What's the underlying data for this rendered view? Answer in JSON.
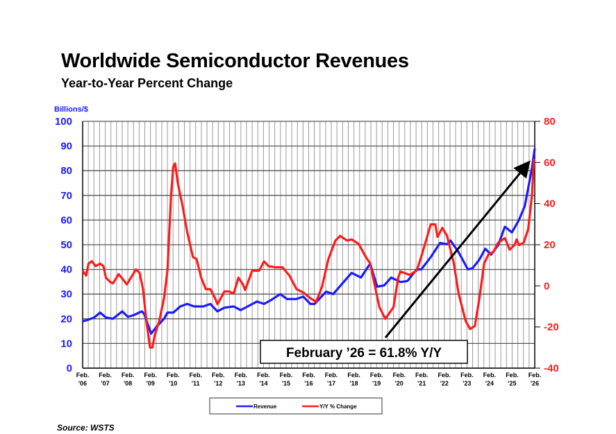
{
  "title": "Worldwide Semiconductor Revenues",
  "subtitle": "Year-to-Year Percent Change",
  "source": "Source: WSTS",
  "chart_data": {
    "type": "line",
    "title": "Worldwide Semiconductor Revenues",
    "subtitle": "Year-to-Year Percent Change",
    "ylabel_left": "Billions/$",
    "ylim_left": [
      0,
      100
    ],
    "yticks_left": [
      "0",
      "10",
      "20",
      "30",
      "40",
      "50",
      "60",
      "70",
      "80",
      "90",
      "100"
    ],
    "ylim_right": [
      -40,
      80
    ],
    "yticks_right": [
      "-40",
      "-20",
      "0",
      "20",
      "40",
      "60",
      "80"
    ],
    "xlim": [
      2006.08,
      2026.08
    ],
    "xticks": [
      [
        "Feb.",
        "'06"
      ],
      [
        "Feb.",
        "'07"
      ],
      [
        "Feb.",
        "'08"
      ],
      [
        "Feb.",
        "'09"
      ],
      [
        "Feb.",
        "'10"
      ],
      [
        "Feb.",
        "'11"
      ],
      [
        "Feb.",
        "'12"
      ],
      [
        "Feb.",
        "'13"
      ],
      [
        "Feb.",
        "'14"
      ],
      [
        "Feb.",
        "'15"
      ],
      [
        "Feb.",
        "'16"
      ],
      [
        "Feb.",
        "'17"
      ],
      [
        "Feb.",
        "'18"
      ],
      [
        "Feb.",
        "'19"
      ],
      [
        "Feb.",
        "'20"
      ],
      [
        "Feb.",
        "'21"
      ],
      [
        "Feb.",
        "'22"
      ],
      [
        "Feb.",
        "'23"
      ],
      [
        "Feb.",
        "'24"
      ],
      [
        "Feb.",
        "'25"
      ],
      [
        "Feb.",
        "'26"
      ]
    ],
    "grid": true,
    "legend_placement": "bottom",
    "annotation": "February ’26 = 61.8% Y/Y",
    "series": [
      {
        "name": "Revenue",
        "axis": "left",
        "color": "#1a1aff",
        "points": [
          [
            2006.08,
            19
          ],
          [
            2006.29,
            19.5
          ],
          [
            2006.59,
            20.5
          ],
          [
            2006.85,
            22.5
          ],
          [
            2007.11,
            20.5
          ],
          [
            2007.42,
            20
          ],
          [
            2007.83,
            23
          ],
          [
            2008.08,
            20.8
          ],
          [
            2008.34,
            21.5
          ],
          [
            2008.7,
            23
          ],
          [
            2008.8,
            22
          ],
          [
            2009.11,
            14
          ],
          [
            2009.37,
            17
          ],
          [
            2009.68,
            20
          ],
          [
            2009.83,
            22.5
          ],
          [
            2010.09,
            22.5
          ],
          [
            2010.4,
            25
          ],
          [
            2010.7,
            26
          ],
          [
            2011.01,
            25
          ],
          [
            2011.42,
            25
          ],
          [
            2011.73,
            26
          ],
          [
            2012.04,
            23
          ],
          [
            2012.35,
            24.5
          ],
          [
            2012.76,
            25
          ],
          [
            2013.07,
            23.5
          ],
          [
            2013.38,
            25
          ],
          [
            2013.79,
            27
          ],
          [
            2014.1,
            26
          ],
          [
            2014.4,
            27.5
          ],
          [
            2014.82,
            30
          ],
          [
            2015.12,
            28
          ],
          [
            2015.54,
            28
          ],
          [
            2015.84,
            29
          ],
          [
            2016.15,
            26
          ],
          [
            2016.34,
            26
          ],
          [
            2016.85,
            31
          ],
          [
            2017.16,
            30
          ],
          [
            2017.98,
            38.6
          ],
          [
            2018.39,
            36.7
          ],
          [
            2018.8,
            42.3
          ],
          [
            2019.11,
            33
          ],
          [
            2019.42,
            33.5
          ],
          [
            2019.73,
            36.7
          ],
          [
            2020.14,
            34.9
          ],
          [
            2020.45,
            35.3
          ],
          [
            2020.86,
            40
          ],
          [
            2021.06,
            40
          ],
          [
            2021.48,
            45
          ],
          [
            2021.89,
            50.7
          ],
          [
            2022.2,
            50.2
          ],
          [
            2022.35,
            51.7
          ],
          [
            2022.71,
            47
          ],
          [
            2023.12,
            40
          ],
          [
            2023.33,
            40.5
          ],
          [
            2023.63,
            44
          ],
          [
            2023.89,
            48.4
          ],
          [
            2024.15,
            46
          ],
          [
            2024.46,
            49.8
          ],
          [
            2024.76,
            57.3
          ],
          [
            2025.07,
            55
          ],
          [
            2025.38,
            60
          ],
          [
            2025.64,
            65.7
          ],
          [
            2025.79,
            73
          ],
          [
            2025.95,
            80.7
          ],
          [
            2026.08,
            89
          ]
        ]
      },
      {
        "name": "Y/Y % Change",
        "axis": "right",
        "color": "#ff1a1a",
        "points": [
          [
            2006.08,
            7.4
          ],
          [
            2006.23,
            5
          ],
          [
            2006.34,
            10.8
          ],
          [
            2006.49,
            12
          ],
          [
            2006.65,
            9.6
          ],
          [
            2006.85,
            10.8
          ],
          [
            2007.0,
            9.6
          ],
          [
            2007.11,
            4
          ],
          [
            2007.31,
            1.8
          ],
          [
            2007.42,
            1.2
          ],
          [
            2007.67,
            5.7
          ],
          [
            2007.88,
            2.9
          ],
          [
            2008.03,
            0.7
          ],
          [
            2008.44,
            8
          ],
          [
            2008.6,
            6.3
          ],
          [
            2008.75,
            -1.6
          ],
          [
            2008.91,
            -18
          ],
          [
            2009.06,
            -30
          ],
          [
            2009.16,
            -30
          ],
          [
            2009.27,
            -24
          ],
          [
            2009.47,
            -17
          ],
          [
            2009.68,
            -6
          ],
          [
            2009.83,
            7.4
          ],
          [
            2009.99,
            44
          ],
          [
            2010.09,
            58
          ],
          [
            2010.17,
            59.5
          ],
          [
            2010.29,
            50
          ],
          [
            2010.5,
            38.8
          ],
          [
            2010.7,
            26.4
          ],
          [
            2010.96,
            14
          ],
          [
            2011.12,
            13
          ],
          [
            2011.32,
            4
          ],
          [
            2011.53,
            -1.6
          ],
          [
            2011.73,
            -1.6
          ],
          [
            2011.94,
            -6
          ],
          [
            2012.04,
            -8.9
          ],
          [
            2012.14,
            -7
          ],
          [
            2012.35,
            -2.7
          ],
          [
            2012.55,
            -2.7
          ],
          [
            2012.76,
            -3.8
          ],
          [
            2012.97,
            4
          ],
          [
            2013.17,
            0.7
          ],
          [
            2013.27,
            -2
          ],
          [
            2013.58,
            7.4
          ],
          [
            2013.89,
            7.4
          ],
          [
            2014.1,
            11.9
          ],
          [
            2014.3,
            9.6
          ],
          [
            2014.61,
            9
          ],
          [
            2014.92,
            9
          ],
          [
            2015.23,
            5
          ],
          [
            2015.54,
            -1.6
          ],
          [
            2015.84,
            -3.2
          ],
          [
            2016.15,
            -6
          ],
          [
            2016.41,
            -7.7
          ],
          [
            2016.67,
            -0.4
          ],
          [
            2016.95,
            13
          ],
          [
            2017.26,
            22
          ],
          [
            2017.47,
            24.3
          ],
          [
            2017.78,
            22
          ],
          [
            2017.98,
            22.6
          ],
          [
            2018.29,
            20.4
          ],
          [
            2018.6,
            14.2
          ],
          [
            2018.8,
            10.9
          ],
          [
            2019.01,
            -0.3
          ],
          [
            2019.21,
            -10.4
          ],
          [
            2019.47,
            -16
          ],
          [
            2019.83,
            -10.4
          ],
          [
            2020.04,
            4.1
          ],
          [
            2020.14,
            7
          ],
          [
            2020.55,
            5.3
          ],
          [
            2020.86,
            7.5
          ],
          [
            2021.06,
            14.2
          ],
          [
            2021.27,
            22
          ],
          [
            2021.48,
            29.9
          ],
          [
            2021.68,
            29.9
          ],
          [
            2021.78,
            23.8
          ],
          [
            2021.99,
            28.2
          ],
          [
            2022.2,
            24.3
          ],
          [
            2022.5,
            10.9
          ],
          [
            2022.71,
            -3.7
          ],
          [
            2023.02,
            -17
          ],
          [
            2023.22,
            -21
          ],
          [
            2023.43,
            -19.5
          ],
          [
            2023.63,
            -6
          ],
          [
            2023.84,
            10.9
          ],
          [
            2024.04,
            15.4
          ],
          [
            2024.25,
            16.5
          ],
          [
            2024.46,
            21
          ],
          [
            2024.76,
            23.2
          ],
          [
            2024.97,
            17.6
          ],
          [
            2025.18,
            19.8
          ],
          [
            2025.28,
            22.6
          ],
          [
            2025.38,
            19.8
          ],
          [
            2025.59,
            21
          ],
          [
            2025.79,
            27.7
          ],
          [
            2025.95,
            43.4
          ],
          [
            2026.05,
            61.8
          ]
        ]
      }
    ]
  }
}
